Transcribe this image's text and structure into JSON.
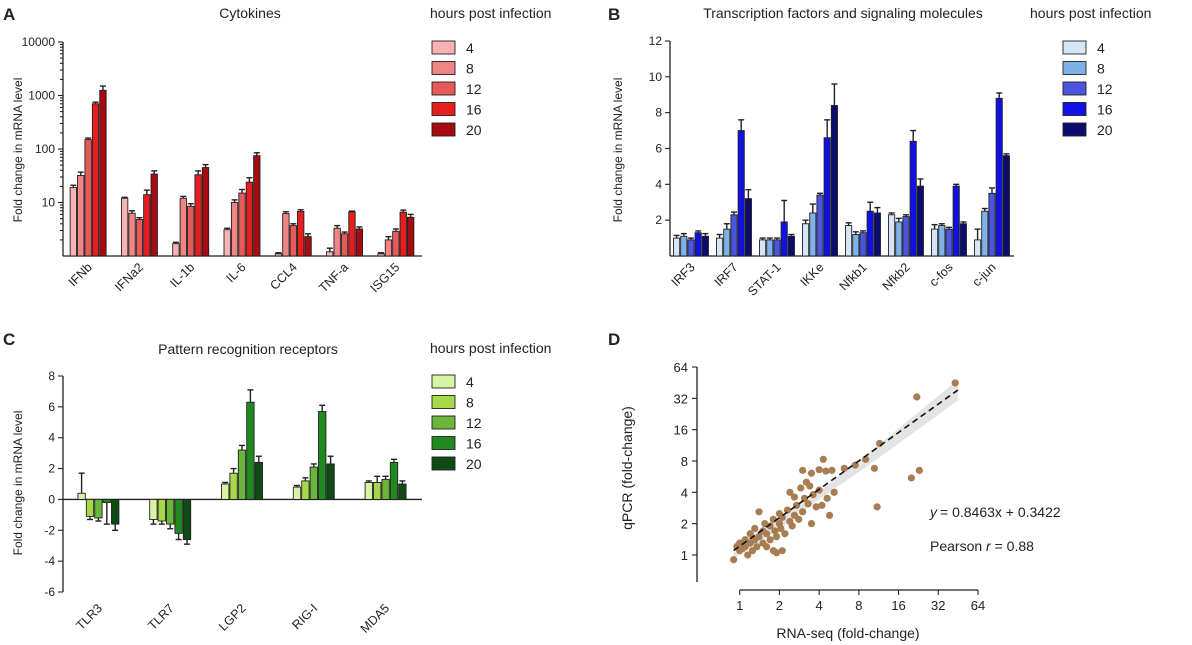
{
  "figure": {
    "panel_labels": [
      "A",
      "B",
      "C",
      "D"
    ],
    "legend_title": "hours post infection",
    "ylabel_fold_change": "Fold change in mRNA level"
  },
  "chart_data": [
    {
      "panel": "A",
      "type": "bar",
      "title": "Cytokines",
      "ylabel": "Fold change in mRNA level",
      "yscale": "log10",
      "ylim": [
        1,
        10000
      ],
      "yticks": [
        10,
        100,
        1000,
        10000
      ],
      "ytick_labels": [
        "10",
        "100",
        "1000",
        "10000"
      ],
      "legend_title": "hours post infection",
      "categories": [
        "IFNb",
        "IFNa2",
        "IL-1b",
        "IL-6",
        "CCL4",
        "TNF-a",
        "ISG15"
      ],
      "series": [
        {
          "name": "4",
          "color": "#f7b3b3",
          "values": [
            19,
            12,
            1.7,
            3.1,
            1.1,
            1.2,
            1.1
          ],
          "errors": [
            2,
            0.5,
            0.1,
            0.2,
            0.05,
            0.2,
            0.05
          ]
        },
        {
          "name": "8",
          "color": "#f08585",
          "values": [
            32,
            6.3,
            12,
            10,
            6.2,
            3.3,
            2.0
          ],
          "errors": [
            5,
            0.7,
            1.0,
            1.2,
            0.5,
            0.4,
            0.3
          ]
        },
        {
          "name": "12",
          "color": "#e85a5a",
          "values": [
            150,
            4.8,
            8.5,
            15,
            3.7,
            2.6,
            2.9
          ],
          "errors": [
            10,
            0.4,
            1.0,
            2.5,
            0.3,
            0.2,
            0.3
          ]
        },
        {
          "name": "16",
          "color": "#e61e1e",
          "values": [
            700,
            14,
            33,
            24,
            6.8,
            6.7,
            6.6
          ],
          "errors": [
            50,
            3,
            6,
            5,
            0.5,
            0.2,
            0.6
          ]
        },
        {
          "name": "20",
          "color": "#a60a12",
          "values": [
            1250,
            34,
            45,
            75,
            2.3,
            3.2,
            5.3
          ],
          "errors": [
            250,
            5,
            6,
            10,
            0.3,
            0.3,
            0.7
          ]
        }
      ]
    },
    {
      "panel": "B",
      "type": "bar",
      "title": "Transcription factors and signaling molecules",
      "ylabel": "Fold change in mRNA level",
      "ylim": [
        0,
        12
      ],
      "yticks": [
        2,
        4,
        6,
        8,
        10,
        12
      ],
      "legend_title": "hours post infection",
      "categories": [
        "IRF3",
        "IRF7",
        "STAT-1",
        "IKKe",
        "Nfkb1",
        "Nfkb2",
        "c-fos",
        "c-jun"
      ],
      "series": [
        {
          "name": "4",
          "color": "#d6e6f7",
          "values": [
            1.0,
            1.0,
            0.9,
            1.8,
            1.7,
            2.3,
            1.5,
            0.9
          ],
          "errors": [
            0.15,
            0.2,
            0.1,
            0.2,
            0.15,
            0.1,
            0.25,
            0.6
          ]
        },
        {
          "name": "8",
          "color": "#7fb2e8",
          "values": [
            1.1,
            1.5,
            0.9,
            2.4,
            1.2,
            1.9,
            1.7,
            2.5
          ],
          "errors": [
            0.15,
            0.3,
            0.1,
            0.5,
            0.15,
            0.2,
            0.1,
            0.15
          ]
        },
        {
          "name": "12",
          "color": "#4a56e0",
          "values": [
            0.9,
            2.3,
            0.9,
            3.4,
            1.3,
            2.2,
            1.5,
            3.5
          ],
          "errors": [
            0.1,
            0.15,
            0.1,
            0.1,
            0.1,
            0.1,
            0.1,
            0.3
          ]
        },
        {
          "name": "16",
          "color": "#1111e6",
          "values": [
            1.3,
            7.0,
            1.9,
            6.6,
            2.5,
            6.4,
            3.9,
            8.8
          ],
          "errors": [
            0.1,
            0.6,
            1.2,
            1.0,
            0.5,
            0.6,
            0.1,
            0.3
          ]
        },
        {
          "name": "20",
          "color": "#0c0c6e",
          "values": [
            1.1,
            3.2,
            1.1,
            8.4,
            2.4,
            3.9,
            1.8,
            5.6
          ],
          "errors": [
            0.15,
            0.5,
            0.1,
            1.2,
            0.3,
            0.4,
            0.1,
            0.1
          ]
        }
      ]
    },
    {
      "panel": "C",
      "type": "bar",
      "title": "Pattern recognition receptors",
      "ylabel": "Fold change in mRNA level",
      "ylim": [
        -6,
        8
      ],
      "yticks": [
        -6,
        -4,
        -2,
        0,
        2,
        4,
        6,
        8
      ],
      "legend_title": "hours post infection",
      "categories": [
        "TLR3",
        "TLR7",
        "LGP2",
        "RIG-I",
        "MDA5"
      ],
      "series": [
        {
          "name": "4",
          "color": "#d8f2a6",
          "values": [
            0.4,
            -1.3,
            1.0,
            0.8,
            1.1
          ],
          "errors": [
            1.3,
            0.3,
            0.1,
            0.1,
            0.1
          ]
        },
        {
          "name": "8",
          "color": "#a6d84a",
          "values": [
            -1.1,
            -1.4,
            1.7,
            1.2,
            1.1
          ],
          "errors": [
            0.2,
            0.2,
            0.3,
            0.2,
            0.4
          ]
        },
        {
          "name": "12",
          "color": "#6ab53a",
          "values": [
            -1.2,
            -1.6,
            3.2,
            2.1,
            1.3
          ],
          "errors": [
            0.2,
            0.3,
            0.3,
            0.2,
            0.2
          ]
        },
        {
          "name": "16",
          "color": "#1f8a1f",
          "values": [
            -0.2,
            -2.2,
            6.3,
            5.7,
            2.4
          ],
          "errors": [
            1.4,
            0.4,
            0.8,
            0.4,
            0.2
          ]
        },
        {
          "name": "20",
          "color": "#0f4a14",
          "values": [
            -1.6,
            -2.6,
            2.4,
            2.3,
            1.0
          ],
          "errors": [
            0.4,
            0.3,
            0.4,
            0.5,
            0.2
          ]
        }
      ]
    },
    {
      "panel": "D",
      "type": "scatter",
      "xscale": "log2",
      "yscale": "log2",
      "xlabel": "RNA-seq (fold-change)",
      "ylabel": "qPCR (fold-change)",
      "xticks": [
        1,
        2,
        4,
        8,
        16,
        32,
        64
      ],
      "yticks": [
        1,
        2,
        4,
        8,
        16,
        32,
        64
      ],
      "xlim": [
        0.5,
        64
      ],
      "ylim": [
        0.55,
        64
      ],
      "equation": "= 0.8463x + 0.3422",
      "equation_var": "y",
      "pearson_prefix": "Pearson ",
      "pearson_var": "r",
      "pearson_value": " = 0.88",
      "point_color": "#a87d52",
      "fit": {
        "slope": 0.8463,
        "intercept": 0.3422,
        "x_range": [
          0.9,
          45
        ]
      },
      "points": [
        [
          0.9,
          0.9
        ],
        [
          0.95,
          1.2
        ],
        [
          1.0,
          1.1
        ],
        [
          1.0,
          1.3
        ],
        [
          1.05,
          1.15
        ],
        [
          1.1,
          1.2
        ],
        [
          1.1,
          1.4
        ],
        [
          1.15,
          1.0
        ],
        [
          1.2,
          1.3
        ],
        [
          1.2,
          1.6
        ],
        [
          1.25,
          1.1
        ],
        [
          1.3,
          1.4
        ],
        [
          1.3,
          1.8
        ],
        [
          1.35,
          1.2
        ],
        [
          1.4,
          1.5
        ],
        [
          1.4,
          2.6
        ],
        [
          1.5,
          1.3
        ],
        [
          1.5,
          1.7
        ],
        [
          1.55,
          2.0
        ],
        [
          1.6,
          1.2
        ],
        [
          1.6,
          1.6
        ],
        [
          1.7,
          1.4
        ],
        [
          1.7,
          1.9
        ],
        [
          1.8,
          1.1
        ],
        [
          1.8,
          2.2
        ],
        [
          1.85,
          1.7
        ],
        [
          1.9,
          1.5
        ],
        [
          1.9,
          1.05
        ],
        [
          2.0,
          2.0
        ],
        [
          2.0,
          2.5
        ],
        [
          2.05,
          1.8
        ],
        [
          2.1,
          1.1
        ],
        [
          2.1,
          2.3
        ],
        [
          2.2,
          1.6
        ],
        [
          2.3,
          2.7
        ],
        [
          2.4,
          2.1
        ],
        [
          2.4,
          4.0
        ],
        [
          2.5,
          1.9
        ],
        [
          2.6,
          2.4
        ],
        [
          2.6,
          3.6
        ],
        [
          2.7,
          3.0
        ],
        [
          2.8,
          2.2
        ],
        [
          2.9,
          4.4
        ],
        [
          3.0,
          6.5
        ],
        [
          3.0,
          2.6
        ],
        [
          3.1,
          3.5
        ],
        [
          3.2,
          5.0
        ],
        [
          3.3,
          3.1
        ],
        [
          3.4,
          4.6
        ],
        [
          3.5,
          2.0
        ],
        [
          3.5,
          6.1
        ],
        [
          3.6,
          3.8
        ],
        [
          3.8,
          2.9
        ],
        [
          4.0,
          4.2
        ],
        [
          4.0,
          6.6
        ],
        [
          4.2,
          3.0
        ],
        [
          4.3,
          8.3
        ],
        [
          4.5,
          6.4
        ],
        [
          4.6,
          3.5
        ],
        [
          4.8,
          2.4
        ],
        [
          5.0,
          6.5
        ],
        [
          5.2,
          4.0
        ],
        [
          6.2,
          6.8
        ],
        [
          7.5,
          7.3
        ],
        [
          9.0,
          8.3
        ],
        [
          10.5,
          6.8
        ],
        [
          11.5,
          11.8
        ],
        [
          11.0,
          2.9
        ],
        [
          20.0,
          5.5
        ],
        [
          23.0,
          6.5
        ],
        [
          22.0,
          33.0
        ],
        [
          43.0,
          45.0
        ]
      ]
    }
  ]
}
